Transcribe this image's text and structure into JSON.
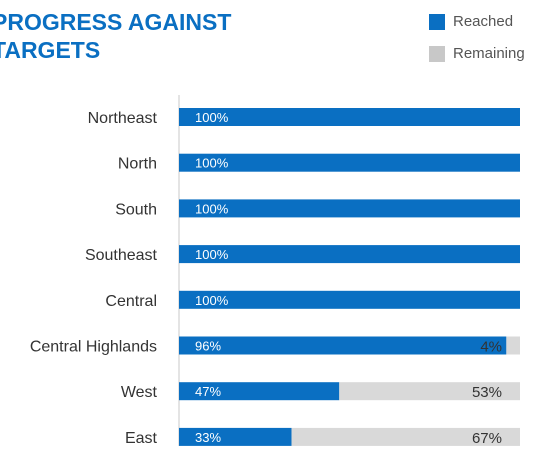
{
  "chart_data": {
    "type": "bar",
    "orientation": "horizontal",
    "stacked": true,
    "title": "PROGRESS AGAINST TARGETS",
    "categories": [
      "Northeast",
      "North",
      "South",
      "Southeast",
      "Central",
      "Central Highlands",
      "West",
      "East"
    ],
    "series": [
      {
        "name": "Reached",
        "values": [
          100,
          100,
          100,
          100,
          100,
          96,
          47,
          33
        ],
        "color": "#0a6fc2"
      },
      {
        "name": "Remaining",
        "values": [
          0,
          0,
          0,
          0,
          0,
          4,
          53,
          67
        ],
        "color": "#d9d9d9"
      }
    ],
    "data_labels": {
      "reached": [
        "100%",
        "100%",
        "100%",
        "100%",
        "100%",
        "96%",
        "47%",
        "33%"
      ],
      "remaining": [
        "",
        "",
        "",
        "",
        "",
        "4%",
        "53%",
        "67%"
      ]
    },
    "xlim": [
      0,
      100
    ],
    "legend_position": "top-right",
    "grid": false
  },
  "legend": {
    "reached_label": "Reached",
    "remaining_label": "Remaining",
    "reached_color": "#0a6fc2",
    "remaining_color": "#c8c8c8"
  }
}
